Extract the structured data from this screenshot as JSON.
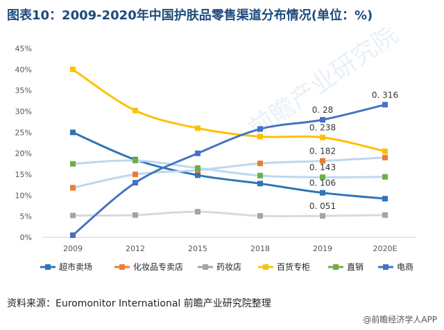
{
  "title": "图表10：2009-2020年中国护肤品零售渠道分布情况(单位：%)",
  "source": "资料来源：Euromonitor International 前瞻产业研究院整理",
  "credit": "@前瞻经济学人APP",
  "watermark": "前瞻产业研究院",
  "chart_data": {
    "type": "line",
    "categories": [
      "2009",
      "2012",
      "2015",
      "2018",
      "2019",
      "2020E"
    ],
    "y_ticks": [
      "0%",
      "5%",
      "10%",
      "15%",
      "20%",
      "25%",
      "30%",
      "35%",
      "40%",
      "45%"
    ],
    "ylim": [
      0,
      45
    ],
    "grid": false,
    "legend_position": "bottom",
    "series": [
      {
        "name": "超市卖场",
        "color": "#2e75b6",
        "values": [
          25.0,
          18.5,
          14.8,
          12.8,
          10.6,
          9.2
        ]
      },
      {
        "name": "化妆品专卖店",
        "color": "#ed7d31",
        "values": [
          11.8,
          15.0,
          16.0,
          17.6,
          18.2,
          19.0
        ]
      },
      {
        "name": "药妆店",
        "color": "#a5a5a5",
        "values": [
          5.2,
          5.3,
          6.1,
          5.1,
          5.1,
          5.3
        ]
      },
      {
        "name": "百货专柜",
        "color": "#ffc000",
        "values": [
          40.0,
          30.2,
          26.0,
          24.0,
          23.8,
          20.5
        ]
      },
      {
        "name": "直销",
        "color": "#70ad47",
        "values": [
          17.5,
          18.3,
          16.5,
          14.7,
          14.3,
          14.4
        ]
      },
      {
        "name": "电商",
        "color": "#4472c4",
        "values": [
          0.5,
          13.0,
          20.0,
          25.8,
          28.0,
          31.6
        ]
      }
    ],
    "light_line_color": "#bdd7ee",
    "data_labels": [
      {
        "text": "0. 316",
        "x": "2020E",
        "y": 31.6
      },
      {
        "text": "0. 28",
        "x": "2019",
        "y": 28.0
      },
      {
        "text": "0. 238",
        "x": "2019",
        "y": 23.8
      },
      {
        "text": "0. 182",
        "x": "2019",
        "y": 18.2
      },
      {
        "text": "0. 143",
        "x": "2019",
        "y": 14.3
      },
      {
        "text": "0. 106",
        "x": "2019",
        "y": 10.6
      },
      {
        "text": "0. 051",
        "x": "2019",
        "y": 5.1
      }
    ]
  }
}
